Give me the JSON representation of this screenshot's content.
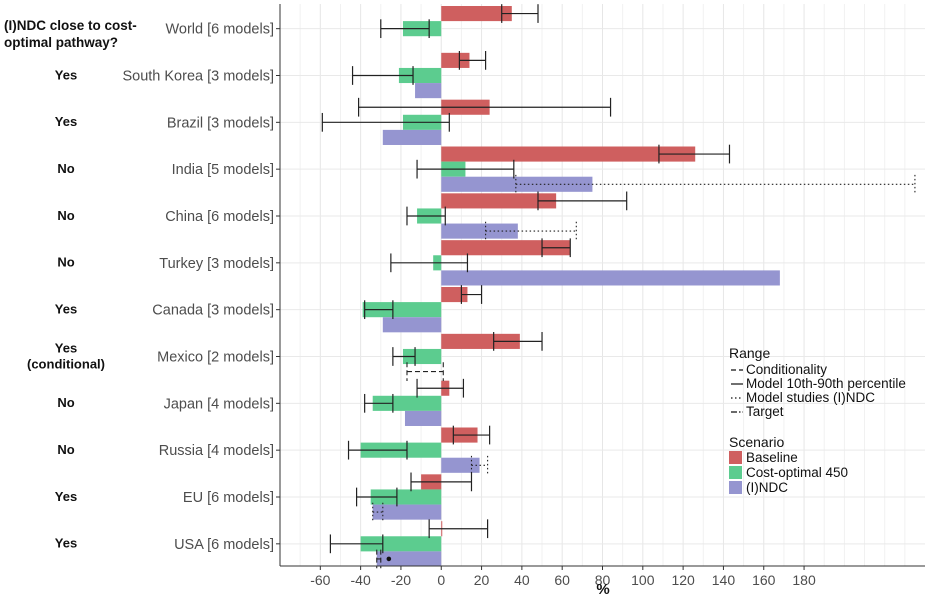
{
  "chart_data": {
    "type": "bar",
    "orientation": "horizontal",
    "title": "",
    "xlabel": "%",
    "ylabel": "",
    "xlim": [
      -80,
      240
    ],
    "x_ticks": [
      -60,
      -40,
      -20,
      0,
      20,
      40,
      60,
      80,
      100,
      120,
      140,
      160,
      180
    ],
    "grid": true,
    "question_header": "(I)NDC close to cost-optimal pathway?",
    "question_header_lines": [
      "(I)NDC close to cost-",
      "optimal pathway?"
    ],
    "categories": [
      "World [6 models]",
      "South Korea [3 models]",
      "Brazil [3 models]",
      "India [5 models]",
      "China [6 models]",
      "Turkey [3 models]",
      "Canada [3 models]",
      "Mexico [2 models]",
      "Japan [4 models]",
      "Russia [4 models]",
      "EU [6 models]",
      "USA [6 models]"
    ],
    "answers": [
      [],
      [
        "Yes"
      ],
      [
        "Yes"
      ],
      [
        "No"
      ],
      [
        "No"
      ],
      [
        "No"
      ],
      [
        "Yes"
      ],
      [
        "Yes",
        "(conditional)"
      ],
      [
        "No"
      ],
      [
        "No"
      ],
      [
        "Yes"
      ],
      [
        "Yes"
      ]
    ],
    "series": [
      {
        "name": "Baseline",
        "color": "#cf5f5f",
        "values": [
          35,
          14,
          24,
          126,
          57,
          64,
          13,
          39,
          4,
          18,
          -10,
          0
        ]
      },
      {
        "name": "Cost-optimal 450",
        "color": "#5ccc8f",
        "values": [
          -19,
          -21,
          -19,
          12,
          -12,
          -4,
          -39,
          -19,
          -34,
          -40,
          -35,
          -40
        ]
      },
      {
        "name": "(I)NDC",
        "color": "#9595d0",
        "values": [
          null,
          -13,
          -29,
          75,
          38,
          168,
          -29,
          null,
          -18,
          19,
          -34,
          -32
        ]
      }
    ],
    "ranges": [
      {
        "category": "World [6 models]",
        "series": "Baseline",
        "style": "solid",
        "low": 30,
        "high": 48
      },
      {
        "category": "World [6 models]",
        "series": "Cost-optimal 450",
        "style": "solid",
        "low": -30,
        "high": -6
      },
      {
        "category": "South Korea [3 models]",
        "series": "Baseline",
        "style": "solid",
        "low": 9,
        "high": 22
      },
      {
        "category": "South Korea [3 models]",
        "series": "Cost-optimal 450",
        "style": "solid",
        "low": -44,
        "high": -14
      },
      {
        "category": "Brazil [3 models]",
        "series": "Baseline",
        "style": "solid",
        "low": -41,
        "high": 84
      },
      {
        "category": "Brazil [3 models]",
        "series": "Cost-optimal 450",
        "style": "solid",
        "low": -59,
        "high": 4
      },
      {
        "category": "India [5 models]",
        "series": "Baseline",
        "style": "solid",
        "low": 108,
        "high": 143
      },
      {
        "category": "India [5 models]",
        "series": "Cost-optimal 450",
        "style": "solid",
        "low": -12,
        "high": 36
      },
      {
        "category": "India [5 models]",
        "series": "(I)NDC",
        "style": "dotted",
        "low": 37,
        "high": 235
      },
      {
        "category": "China [6 models]",
        "series": "Baseline",
        "style": "solid",
        "low": 48,
        "high": 92
      },
      {
        "category": "China [6 models]",
        "series": "Cost-optimal 450",
        "style": "solid",
        "low": -17,
        "high": 2
      },
      {
        "category": "China [6 models]",
        "series": "(I)NDC",
        "style": "dotted",
        "low": 22,
        "high": 67
      },
      {
        "category": "Turkey [3 models]",
        "series": "Baseline",
        "style": "solid",
        "low": 50,
        "high": 64
      },
      {
        "category": "Turkey [3 models]",
        "series": "Cost-optimal 450",
        "style": "solid",
        "low": -25,
        "high": 13
      },
      {
        "category": "Canada [3 models]",
        "series": "Baseline",
        "style": "solid",
        "low": 10,
        "high": 20
      },
      {
        "category": "Canada [3 models]",
        "series": "Cost-optimal 450",
        "style": "solid",
        "low": -38,
        "high": -24
      },
      {
        "category": "Mexico [2 models]",
        "series": "Baseline",
        "style": "solid",
        "low": 26,
        "high": 50
      },
      {
        "category": "Mexico [2 models]",
        "series": "Cost-optimal 450",
        "style": "solid",
        "low": -24,
        "high": -13
      },
      {
        "category": "Mexico [2 models]",
        "series": "(I)NDC",
        "style": "dashed",
        "low": -17,
        "high": 1
      },
      {
        "category": "Japan [4 models]",
        "series": "Baseline",
        "style": "solid",
        "low": -12,
        "high": 11
      },
      {
        "category": "Japan [4 models]",
        "series": "Cost-optimal 450",
        "style": "solid",
        "low": -38,
        "high": -24
      },
      {
        "category": "Russia [4 models]",
        "series": "Baseline",
        "style": "solid",
        "low": 6,
        "high": 24
      },
      {
        "category": "Russia [4 models]",
        "series": "Cost-optimal 450",
        "style": "solid",
        "low": -46,
        "high": -17
      },
      {
        "category": "Russia [4 models]",
        "series": "(I)NDC",
        "style": "dotted",
        "low": 15,
        "high": 23
      },
      {
        "category": "EU [6 models]",
        "series": "Baseline",
        "style": "solid",
        "low": -15,
        "high": 15
      },
      {
        "category": "EU [6 models]",
        "series": "Cost-optimal 450",
        "style": "solid",
        "low": -42,
        "high": -22
      },
      {
        "category": "EU [6 models]",
        "series": "(I)NDC",
        "style": "dotted",
        "low": -34,
        "high": -29
      },
      {
        "category": "USA [6 models]",
        "series": "Baseline",
        "style": "solid",
        "low": -6,
        "high": 23
      },
      {
        "category": "USA [6 models]",
        "series": "Cost-optimal 450",
        "style": "solid",
        "low": -55,
        "high": -29
      },
      {
        "category": "USA [6 models]",
        "series": "(I)NDC",
        "style": "dashed",
        "low": -32,
        "high": -30
      }
    ],
    "points": [
      {
        "category": "USA [6 models]",
        "series": "(I)NDC",
        "value": -26
      }
    ],
    "legend": {
      "position": "right",
      "range_title": "Range",
      "range_items": [
        {
          "label": "Conditionality",
          "style": "dashed"
        },
        {
          "label": "Model 10th-90th percentile",
          "style": "solid"
        },
        {
          "label": "Model studies (I)NDC",
          "style": "dotted"
        },
        {
          "label": "Target",
          "style": "dashdot"
        }
      ],
      "scenario_title": "Scenario",
      "scenario_items": [
        {
          "label": "Baseline",
          "color": "#cf5f5f"
        },
        {
          "label": "Cost-optimal 450",
          "color": "#5ccc8f"
        },
        {
          "label": "(I)NDC",
          "color": "#9595d0"
        }
      ]
    }
  }
}
